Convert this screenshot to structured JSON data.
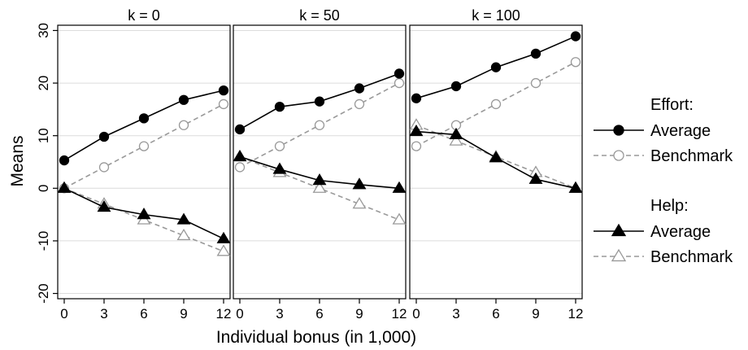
{
  "chart_data": {
    "type": "line",
    "ylabel": "Means",
    "xlabel": "Individual bonus (in 1,000)",
    "x": [
      0,
      3,
      6,
      9,
      12
    ],
    "ylim": [
      -21,
      31
    ],
    "yticks": [
      -20,
      -10,
      0,
      10,
      20,
      30
    ],
    "ytick_labels": [
      "-20",
      "-10",
      "0",
      "10",
      "20",
      "30"
    ],
    "xticks": [
      0,
      3,
      6,
      9,
      12
    ],
    "xtick_labels": [
      "0",
      "3",
      "6",
      "9",
      "12"
    ],
    "grid": true,
    "panels": [
      {
        "title": "k = 0",
        "series": [
          {
            "group": "Effort",
            "name": "Average",
            "values": [
              5.3,
              9.8,
              13.3,
              16.8,
              18.6
            ]
          },
          {
            "group": "Effort",
            "name": "Benchmark",
            "values": [
              0,
              4,
              8,
              12,
              16
            ]
          },
          {
            "group": "Help",
            "name": "Average",
            "values": [
              0,
              -3.6,
              -5,
              -6,
              -9.6
            ]
          },
          {
            "group": "Help",
            "name": "Benchmark",
            "values": [
              0,
              -3,
              -6,
              -9,
              -12
            ]
          }
        ]
      },
      {
        "title": "k = 50",
        "series": [
          {
            "group": "Effort",
            "name": "Average",
            "values": [
              11.2,
              15.5,
              16.5,
              19,
              21.8
            ]
          },
          {
            "group": "Effort",
            "name": "Benchmark",
            "values": [
              4,
              8,
              12,
              16,
              20
            ]
          },
          {
            "group": "Help",
            "name": "Average",
            "values": [
              6,
              3.6,
              1.5,
              0.7,
              0
            ]
          },
          {
            "group": "Help",
            "name": "Benchmark",
            "values": [
              6,
              3,
              0,
              -3,
              -6
            ]
          }
        ]
      },
      {
        "title": "k = 100",
        "series": [
          {
            "group": "Effort",
            "name": "Average",
            "values": [
              17.1,
              19.4,
              23,
              25.6,
              28.9
            ]
          },
          {
            "group": "Effort",
            "name": "Benchmark",
            "values": [
              8,
              12,
              16,
              20,
              24
            ]
          },
          {
            "group": "Help",
            "name": "Average",
            "values": [
              10.8,
              10.2,
              5.8,
              1.7,
              0
            ]
          },
          {
            "group": "Help",
            "name": "Benchmark",
            "values": [
              12,
              9,
              6,
              3,
              0
            ]
          }
        ]
      }
    ],
    "legend": {
      "position": "right",
      "groups": [
        {
          "title": "Effort:",
          "items": [
            {
              "label": "Average",
              "marker": "circle-filled",
              "line": "solid"
            },
            {
              "label": "Benchmark",
              "marker": "circle-hollow",
              "line": "dashed"
            }
          ]
        },
        {
          "title": "Help:",
          "items": [
            {
              "label": "Average",
              "marker": "triangle-filled",
              "line": "solid"
            },
            {
              "label": "Benchmark",
              "marker": "triangle-hollow",
              "line": "dashed"
            }
          ]
        }
      ]
    },
    "colors": {
      "average_line": "#000000",
      "benchmark_line": "#999999",
      "grid": "#dcdcdc",
      "title_bar": "#ffffff"
    }
  }
}
